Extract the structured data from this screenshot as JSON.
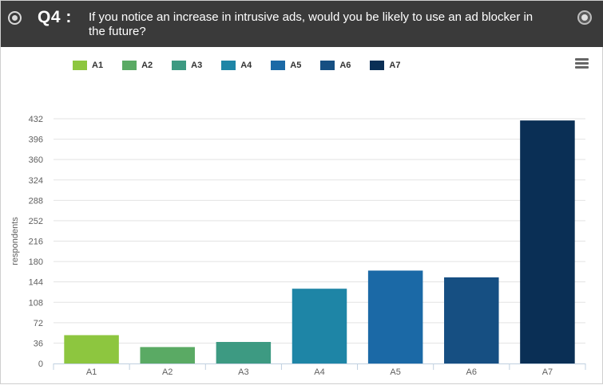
{
  "header": {
    "question_number": "Q4 :",
    "question_text": "If you notice an increase in intrusive ads, would you be likely to use an ad blocker in the future?"
  },
  "colors": {
    "A1": "#8dc63f",
    "A2": "#5aaa64",
    "A3": "#3d9a82",
    "A4": "#1e85a6",
    "A5": "#1b69a6",
    "A6": "#164f82",
    "A7": "#0a2f55"
  },
  "chart_data": {
    "type": "bar",
    "categories": [
      "A1",
      "A2",
      "A3",
      "A4",
      "A5",
      "A6",
      "A7"
    ],
    "values": [
      50,
      29,
      38,
      132,
      164,
      152,
      429
    ],
    "legend": [
      "A1",
      "A2",
      "A3",
      "A4",
      "A5",
      "A6",
      "A7"
    ],
    "legend_placement": "top-left",
    "ylabel": "respondents",
    "xlabel": "",
    "ylim": [
      0,
      432
    ],
    "yticks": [
      "0",
      "36",
      "72",
      "108",
      "144",
      "180",
      "216",
      "252",
      "288",
      "324",
      "360",
      "396",
      "432"
    ],
    "grid": true
  }
}
